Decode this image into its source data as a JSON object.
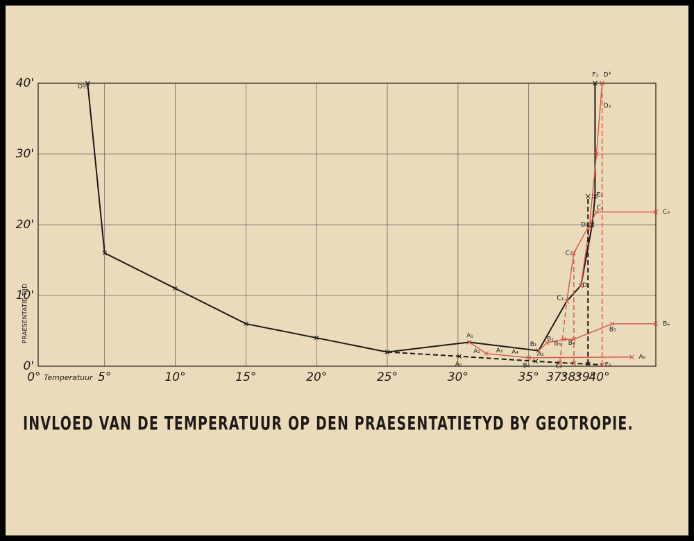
{
  "chart_data": {
    "type": "line",
    "title": "INVLOED VAN DE TEMPERATUUR OP DEN PRAESENTATIETYD BY GEOTROPIE.",
    "x_label": "Temperatuur",
    "y_label": "PRAESENTATIE TIJD",
    "xlim": [
      0.3,
      44
    ],
    "ylim": [
      0,
      40
    ],
    "xticks": [
      {
        "value": 0,
        "label": "0°"
      },
      {
        "value": 5,
        "label": "5°"
      },
      {
        "value": 10,
        "label": "10°"
      },
      {
        "value": 15,
        "label": "15°"
      },
      {
        "value": 20,
        "label": "20°"
      },
      {
        "value": 25,
        "label": "25°"
      },
      {
        "value": 30,
        "label": "30°"
      },
      {
        "value": 35,
        "label": "35°"
      },
      {
        "value": 37,
        "label": "37°"
      },
      {
        "value": 38,
        "label": "38°"
      },
      {
        "value": 39,
        "label": "39°"
      },
      {
        "value": 40,
        "label": "40°"
      }
    ],
    "xgrid": [
      5,
      10,
      15,
      20,
      25,
      30,
      35
    ],
    "yticks": [
      {
        "value": 0,
        "label": "0'"
      },
      {
        "value": 10,
        "label": "10'"
      },
      {
        "value": 20,
        "label": "20'"
      },
      {
        "value": 30,
        "label": "30'"
      },
      {
        "value": 40,
        "label": "40'"
      }
    ],
    "grid": true,
    "series": [
      {
        "color": "#1e1a16",
        "dashed": false,
        "x": [
          3.8,
          5,
          10,
          15,
          20,
          25,
          30.8,
          35.7,
          37.7,
          38.7,
          39.5,
          39.7,
          39.7
        ],
        "values": [
          40,
          16,
          11,
          6,
          4,
          2,
          3.4,
          2.2,
          9.2,
          11.4,
          20,
          24,
          40
        ]
      },
      {
        "color": "#1e1a16",
        "dashed": true,
        "x": [
          25,
          30.1,
          35.5,
          37.2,
          38.2,
          39.2,
          40.2
        ],
        "values": [
          2,
          1.4,
          0.7,
          0.5,
          0.4,
          0.3,
          0.2
        ]
      },
      {
        "color": "#d9534a",
        "dashed": false,
        "x": [
          30.8,
          32,
          35,
          42.3
        ],
        "values": [
          3.4,
          1.8,
          1.2,
          1.3
        ]
      },
      {
        "color": "#d9534a",
        "dashed": false,
        "x": [
          35.7,
          36.3,
          37.5,
          38.2,
          40.9,
          44
        ],
        "values": [
          2.2,
          3.3,
          3.8,
          3.8,
          6,
          6
        ]
      },
      {
        "color": "#d9534a",
        "dashed": false,
        "x": [
          37.7,
          38.2,
          39.8,
          44
        ],
        "values": [
          9.2,
          16,
          21.8,
          21.8
        ]
      },
      {
        "color": "#d9534a",
        "dashed": false,
        "x": [
          38.7,
          39.3,
          39.8,
          40.2
        ],
        "values": [
          11.4,
          19.7,
          30,
          40
        ]
      },
      {
        "color": "#d9534a",
        "dashed": true,
        "x": [
          37.2,
          37.7
        ],
        "values": [
          0.5,
          9.2
        ]
      },
      {
        "color": "#d9534a",
        "dashed": true,
        "x": [
          38.2,
          38.2
        ],
        "values": [
          0.4,
          16
        ]
      },
      {
        "color": "#1e1a16",
        "dashed": true,
        "x": [
          39.2,
          39.2
        ],
        "values": [
          0.3,
          24
        ]
      },
      {
        "color": "#d9534a",
        "dashed": true,
        "x": [
          40.2,
          40.2
        ],
        "values": [
          0.2,
          40
        ]
      }
    ],
    "annotations": [
      {
        "text": "O½",
        "x": 3.1,
        "y": 39.5
      },
      {
        "text": "A₁",
        "x": 30.6,
        "y": 4.3
      },
      {
        "text": "A₀",
        "x": 29.8,
        "y": 0.3
      },
      {
        "text": "A₂",
        "x": 31.1,
        "y": 2.1
      },
      {
        "text": "A₃",
        "x": 32.7,
        "y": 2.2
      },
      {
        "text": "A₄",
        "x": 33.8,
        "y": 2
      },
      {
        "text": "A₅",
        "x": 35.6,
        "y": 1.7
      },
      {
        "text": "A₆",
        "x": 42.8,
        "y": 1.3
      },
      {
        "text": "B₀",
        "x": 34.6,
        "y": 0.1
      },
      {
        "text": "B₁",
        "x": 35.1,
        "y": 3.1
      },
      {
        "text": "B₂",
        "x": 36.3,
        "y": 3.8
      },
      {
        "text": "B₃",
        "x": 36.8,
        "y": 3.2
      },
      {
        "text": "B₄",
        "x": 37.8,
        "y": 3.3
      },
      {
        "text": "B₅",
        "x": 40.7,
        "y": 5.2
      },
      {
        "text": "B₆",
        "x": 44.5,
        "y": 6
      },
      {
        "text": "C₀",
        "x": 36.9,
        "y": 0
      },
      {
        "text": "C₁",
        "x": 37,
        "y": 9.6
      },
      {
        "text": "C₂",
        "x": 37.6,
        "y": 16
      },
      {
        "text": "C₃",
        "x": 39.8,
        "y": 22.4
      },
      {
        "text": "C₆",
        "x": 44.5,
        "y": 21.8
      },
      {
        "text": "D₁",
        "x": 38.8,
        "y": 11.4
      },
      {
        "text": "D₂",
        "x": 38.7,
        "y": 20
      },
      {
        "text": "D₃",
        "x": 40.3,
        "y": 36.8
      },
      {
        "text": "D⁴",
        "x": 40.3,
        "y": 41.2
      },
      {
        "text": "E₁",
        "x": 39.8,
        "y": 24.2
      },
      {
        "text": "F₁",
        "x": 39.5,
        "y": 41.2
      },
      {
        "text": "F₀",
        "x": 40.4,
        "y": 0.2
      }
    ]
  }
}
